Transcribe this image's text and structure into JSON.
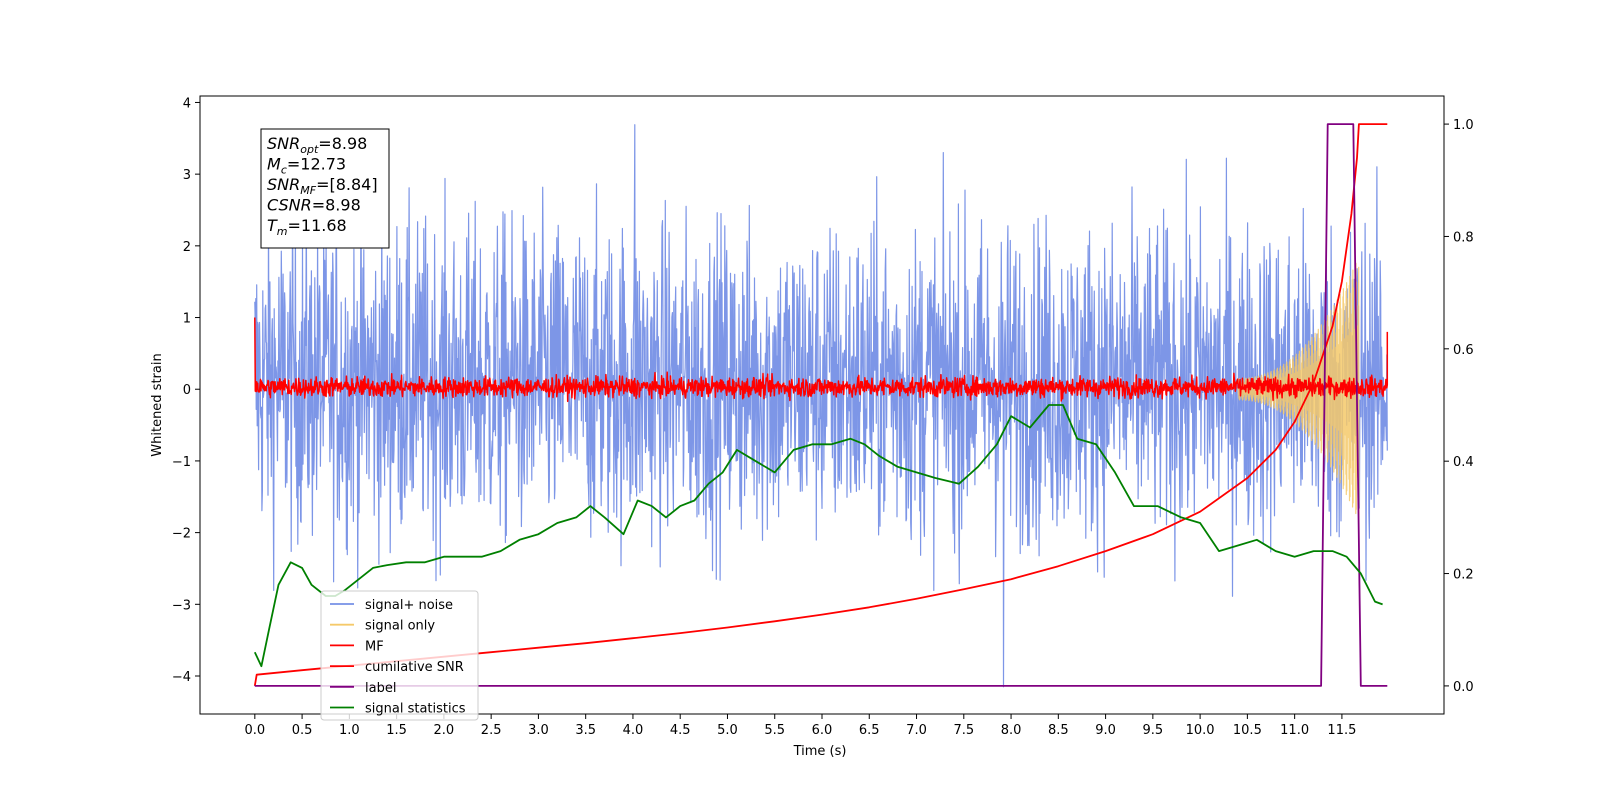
{
  "chart_data": {
    "type": "line",
    "xlabel": "Time (s)",
    "ylabel": "Whitened strain",
    "xlim": [
      -0.58,
      12.58
    ],
    "ylim": [
      -4.53,
      4.09
    ],
    "y2lim": [
      -0.05,
      1.05
    ],
    "xticks": [
      "0.0",
      "0.5",
      "1.0",
      "1.5",
      "2.0",
      "2.5",
      "3.0",
      "3.5",
      "4.0",
      "4.5",
      "5.0",
      "5.5",
      "6.0",
      "6.5",
      "7.0",
      "7.5",
      "8.0",
      "8.5",
      "9.0",
      "9.5",
      "10.0",
      "10.5",
      "11.0",
      "11.5"
    ],
    "yticks": [
      "4",
      "3",
      "2",
      "1",
      "0",
      "−1",
      "−2",
      "−3",
      "−4"
    ],
    "y2ticks": [
      "1.0",
      "0.8",
      "0.6",
      "0.4",
      "0.2",
      "0.0"
    ],
    "annotation": {
      "lines": [
        {
          "base": "SNR",
          "sub": "opt",
          "rest": "=8.98"
        },
        {
          "base": "M",
          "sub": "c",
          "rest": "=12.73"
        },
        {
          "base": "SNR",
          "sub": "MF",
          "rest": "=[8.84]"
        },
        {
          "base": "CSNR",
          "sub": "",
          "rest": "=8.98"
        },
        {
          "base": "T",
          "sub": "m",
          "rest": "=11.68"
        }
      ]
    },
    "legend": {
      "placement": "lower-left",
      "entries": [
        {
          "label": "signal+ noise",
          "color": "#7690e6"
        },
        {
          "label": "signal only",
          "color": "#f5c96a"
        },
        {
          "label": "MF",
          "color": "#ff0000"
        },
        {
          "label": "cumilative SNR",
          "color": "#ff0000"
        },
        {
          "label": "label",
          "color": "#800080"
        },
        {
          "label": "signal statistics",
          "color": "#008000"
        }
      ]
    },
    "series": [
      {
        "name": "signal+ noise",
        "axis": "left",
        "color": "#7690e6",
        "kind": "noise",
        "x_range": [
          0.0,
          11.98
        ],
        "mean": 0.0,
        "typical_range": [
          -1.9,
          2.1
        ],
        "peaks": [
          3.69,
          -4.15
        ]
      },
      {
        "name": "signal only",
        "axis": "left",
        "color": "#f5c96a",
        "kind": "chirp",
        "x_range": [
          10.4,
          11.68
        ],
        "envelope_end": 1.7
      },
      {
        "name": "MF",
        "axis": "left",
        "color": "#ff0000",
        "kind": "noise",
        "x_range": [
          0.0,
          11.98
        ],
        "typical_range": [
          -0.15,
          0.25
        ],
        "start_value": 1.0,
        "end_value": 0.8
      },
      {
        "name": "cumilative SNR",
        "axis": "right",
        "color": "#ff0000",
        "x": [
          0.0,
          0.02,
          0.5,
          1.0,
          1.5,
          2.0,
          2.5,
          3.0,
          3.5,
          4.0,
          4.5,
          5.0,
          5.5,
          6.0,
          6.5,
          7.0,
          7.5,
          8.0,
          8.5,
          9.0,
          9.5,
          10.0,
          10.5,
          10.8,
          11.0,
          11.2,
          11.4,
          11.5,
          11.6,
          11.66,
          11.68,
          11.75,
          11.98
        ],
        "values": [
          0.0,
          0.02,
          0.028,
          0.036,
          0.044,
          0.052,
          0.06,
          0.068,
          0.076,
          0.085,
          0.094,
          0.104,
          0.115,
          0.127,
          0.14,
          0.155,
          0.172,
          0.19,
          0.213,
          0.24,
          0.27,
          0.31,
          0.37,
          0.42,
          0.47,
          0.54,
          0.64,
          0.72,
          0.84,
          0.94,
          1.0,
          1.0,
          1.0
        ]
      },
      {
        "name": "label",
        "axis": "right",
        "color": "#800080",
        "x": [
          0.0,
          11.28,
          11.35,
          11.62,
          11.7,
          11.98
        ],
        "values": [
          0.0,
          0.0,
          1.0,
          1.0,
          0.0,
          0.0
        ]
      },
      {
        "name": "signal statistics",
        "axis": "right",
        "color": "#008000",
        "x": [
          0.0,
          0.07,
          0.15,
          0.25,
          0.38,
          0.5,
          0.6,
          0.75,
          0.85,
          0.95,
          1.1,
          1.25,
          1.4,
          1.6,
          1.8,
          2.0,
          2.2,
          2.4,
          2.6,
          2.8,
          3.0,
          3.2,
          3.4,
          3.55,
          3.7,
          3.9,
          4.05,
          4.2,
          4.35,
          4.5,
          4.65,
          4.8,
          4.95,
          5.1,
          5.3,
          5.5,
          5.7,
          5.9,
          6.1,
          6.3,
          6.45,
          6.6,
          6.8,
          7.0,
          7.2,
          7.45,
          7.65,
          7.85,
          8.0,
          8.2,
          8.4,
          8.55,
          8.7,
          8.9,
          9.1,
          9.3,
          9.55,
          9.8,
          10.0,
          10.2,
          10.4,
          10.6,
          10.8,
          11.0,
          11.2,
          11.4,
          11.55,
          11.7,
          11.85,
          11.93
        ],
        "values": [
          0.06,
          0.035,
          0.1,
          0.18,
          0.22,
          0.21,
          0.18,
          0.16,
          0.16,
          0.17,
          0.19,
          0.21,
          0.215,
          0.22,
          0.22,
          0.23,
          0.23,
          0.23,
          0.24,
          0.26,
          0.27,
          0.29,
          0.3,
          0.32,
          0.3,
          0.27,
          0.33,
          0.32,
          0.3,
          0.32,
          0.33,
          0.36,
          0.38,
          0.42,
          0.4,
          0.38,
          0.42,
          0.43,
          0.43,
          0.44,
          0.43,
          0.41,
          0.39,
          0.38,
          0.37,
          0.36,
          0.39,
          0.43,
          0.48,
          0.46,
          0.5,
          0.5,
          0.44,
          0.43,
          0.38,
          0.32,
          0.32,
          0.3,
          0.29,
          0.24,
          0.25,
          0.26,
          0.24,
          0.23,
          0.24,
          0.24,
          0.23,
          0.2,
          0.15,
          0.145
        ]
      }
    ]
  }
}
